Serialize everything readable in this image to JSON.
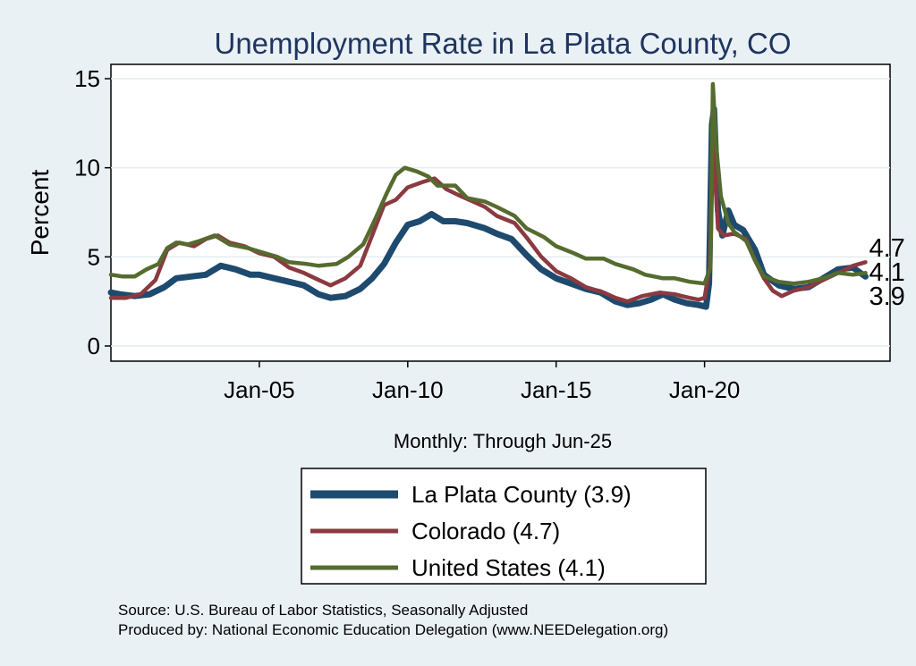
{
  "chart_data": {
    "type": "line",
    "title": "Unemployment Rate in La Plata  County, CO",
    "xlabel": "Monthly: Through Jun-25",
    "ylabel": "Percent",
    "ylim": [
      0,
      15
    ],
    "yticks": [
      0,
      5,
      10,
      15
    ],
    "xlim": [
      2000.0,
      2026.25
    ],
    "xticks": [
      {
        "x": 2005.0,
        "label": "Jan-05"
      },
      {
        "x": 2010.0,
        "label": "Jan-10"
      },
      {
        "x": 2015.0,
        "label": "Jan-15"
      },
      {
        "x": 2020.0,
        "label": "Jan-20"
      }
    ],
    "grid": true,
    "legend_position": "bottom-center",
    "series": [
      {
        "name": "United States",
        "legend_label": "United States (4.1)",
        "color": "#556b2f",
        "end_value": "4.1",
        "points": [
          [
            2000.0,
            4.0
          ],
          [
            2000.4,
            3.9
          ],
          [
            2000.8,
            3.9
          ],
          [
            2001.2,
            4.3
          ],
          [
            2001.6,
            4.6
          ],
          [
            2001.9,
            5.5
          ],
          [
            2002.2,
            5.8
          ],
          [
            2002.6,
            5.7
          ],
          [
            2003.0,
            5.9
          ],
          [
            2003.5,
            6.2
          ],
          [
            2004.0,
            5.7
          ],
          [
            2004.6,
            5.5
          ],
          [
            2005.0,
            5.3
          ],
          [
            2005.6,
            5.0
          ],
          [
            2006.0,
            4.7
          ],
          [
            2006.6,
            4.6
          ],
          [
            2007.0,
            4.5
          ],
          [
            2007.6,
            4.6
          ],
          [
            2008.0,
            5.0
          ],
          [
            2008.5,
            5.7
          ],
          [
            2008.9,
            7.1
          ],
          [
            2009.3,
            8.6
          ],
          [
            2009.6,
            9.6
          ],
          [
            2009.9,
            10.0
          ],
          [
            2010.3,
            9.8
          ],
          [
            2010.7,
            9.5
          ],
          [
            2011.0,
            9.0
          ],
          [
            2011.6,
            9.0
          ],
          [
            2012.0,
            8.3
          ],
          [
            2012.6,
            8.1
          ],
          [
            2013.0,
            7.8
          ],
          [
            2013.6,
            7.3
          ],
          [
            2014.0,
            6.6
          ],
          [
            2014.6,
            6.1
          ],
          [
            2015.0,
            5.6
          ],
          [
            2015.6,
            5.2
          ],
          [
            2016.0,
            4.9
          ],
          [
            2016.6,
            4.9
          ],
          [
            2017.0,
            4.6
          ],
          [
            2017.6,
            4.3
          ],
          [
            2018.0,
            4.0
          ],
          [
            2018.6,
            3.8
          ],
          [
            2019.0,
            3.8
          ],
          [
            2019.5,
            3.6
          ],
          [
            2020.0,
            3.5
          ],
          [
            2020.2,
            4.4
          ],
          [
            2020.28,
            14.7
          ],
          [
            2020.4,
            11.1
          ],
          [
            2020.55,
            8.4
          ],
          [
            2020.8,
            6.9
          ],
          [
            2021.0,
            6.4
          ],
          [
            2021.4,
            5.9
          ],
          [
            2021.7,
            4.8
          ],
          [
            2022.0,
            3.9
          ],
          [
            2022.5,
            3.6
          ],
          [
            2023.0,
            3.5
          ],
          [
            2023.5,
            3.6
          ],
          [
            2024.0,
            3.8
          ],
          [
            2024.5,
            4.1
          ],
          [
            2025.0,
            4.0
          ],
          [
            2025.42,
            4.1
          ]
        ]
      },
      {
        "name": "Colorado",
        "legend_label": "Colorado (4.7)",
        "color": "#8b3a3f",
        "end_value": "4.7",
        "points": [
          [
            2000.0,
            2.7
          ],
          [
            2000.5,
            2.7
          ],
          [
            2001.0,
            2.9
          ],
          [
            2001.5,
            3.7
          ],
          [
            2001.9,
            5.4
          ],
          [
            2002.3,
            5.8
          ],
          [
            2002.8,
            5.6
          ],
          [
            2003.2,
            6.0
          ],
          [
            2003.6,
            6.2
          ],
          [
            2004.0,
            5.8
          ],
          [
            2004.5,
            5.6
          ],
          [
            2005.0,
            5.2
          ],
          [
            2005.5,
            5.0
          ],
          [
            2006.0,
            4.4
          ],
          [
            2006.5,
            4.1
          ],
          [
            2007.0,
            3.7
          ],
          [
            2007.4,
            3.4
          ],
          [
            2007.9,
            3.8
          ],
          [
            2008.4,
            4.5
          ],
          [
            2008.8,
            6.2
          ],
          [
            2009.2,
            7.9
          ],
          [
            2009.6,
            8.2
          ],
          [
            2010.0,
            8.9
          ],
          [
            2010.5,
            9.2
          ],
          [
            2010.9,
            9.4
          ],
          [
            2011.3,
            8.8
          ],
          [
            2011.8,
            8.4
          ],
          [
            2012.2,
            8.1
          ],
          [
            2012.6,
            7.8
          ],
          [
            2013.0,
            7.3
          ],
          [
            2013.6,
            6.9
          ],
          [
            2014.0,
            6.1
          ],
          [
            2014.5,
            5.0
          ],
          [
            2015.0,
            4.2
          ],
          [
            2015.5,
            3.8
          ],
          [
            2016.0,
            3.3
          ],
          [
            2016.6,
            3.0
          ],
          [
            2017.0,
            2.7
          ],
          [
            2017.4,
            2.5
          ],
          [
            2017.9,
            2.8
          ],
          [
            2018.5,
            3.0
          ],
          [
            2019.0,
            2.9
          ],
          [
            2019.5,
            2.7
          ],
          [
            2019.8,
            2.6
          ],
          [
            2020.0,
            2.7
          ],
          [
            2020.18,
            4.5
          ],
          [
            2020.28,
            11.8
          ],
          [
            2020.45,
            6.6
          ],
          [
            2020.65,
            6.2
          ],
          [
            2021.0,
            6.3
          ],
          [
            2021.4,
            6.0
          ],
          [
            2021.7,
            4.8
          ],
          [
            2022.0,
            3.8
          ],
          [
            2022.3,
            3.1
          ],
          [
            2022.6,
            2.8
          ],
          [
            2023.0,
            3.1
          ],
          [
            2023.5,
            3.3
          ],
          [
            2024.0,
            3.7
          ],
          [
            2024.5,
            4.1
          ],
          [
            2025.0,
            4.5
          ],
          [
            2025.42,
            4.7
          ]
        ]
      },
      {
        "name": "La Plata  County",
        "legend_label": "La Plata  County (3.9)",
        "color": "#1e4a6e",
        "end_value": "3.9",
        "points": [
          [
            2000.0,
            3.0
          ],
          [
            2000.3,
            2.9
          ],
          [
            2000.8,
            2.8
          ],
          [
            2001.3,
            2.9
          ],
          [
            2001.8,
            3.3
          ],
          [
            2002.2,
            3.8
          ],
          [
            2002.7,
            3.9
          ],
          [
            2003.2,
            4.0
          ],
          [
            2003.7,
            4.5
          ],
          [
            2004.2,
            4.3
          ],
          [
            2004.7,
            4.0
          ],
          [
            2005.0,
            4.0
          ],
          [
            2005.5,
            3.8
          ],
          [
            2006.0,
            3.6
          ],
          [
            2006.5,
            3.4
          ],
          [
            2007.0,
            2.9
          ],
          [
            2007.4,
            2.7
          ],
          [
            2007.9,
            2.8
          ],
          [
            2008.4,
            3.2
          ],
          [
            2008.8,
            3.8
          ],
          [
            2009.2,
            4.6
          ],
          [
            2009.6,
            5.8
          ],
          [
            2010.0,
            6.8
          ],
          [
            2010.4,
            7.0
          ],
          [
            2010.8,
            7.4
          ],
          [
            2011.2,
            7.0
          ],
          [
            2011.6,
            7.0
          ],
          [
            2012.0,
            6.9
          ],
          [
            2012.6,
            6.6
          ],
          [
            2013.0,
            6.3
          ],
          [
            2013.5,
            6.0
          ],
          [
            2014.0,
            5.1
          ],
          [
            2014.5,
            4.3
          ],
          [
            2015.0,
            3.8
          ],
          [
            2015.5,
            3.5
          ],
          [
            2016.0,
            3.2
          ],
          [
            2016.5,
            3.0
          ],
          [
            2017.0,
            2.5
          ],
          [
            2017.4,
            2.3
          ],
          [
            2017.8,
            2.4
          ],
          [
            2018.2,
            2.6
          ],
          [
            2018.6,
            2.9
          ],
          [
            2019.0,
            2.6
          ],
          [
            2019.4,
            2.4
          ],
          [
            2019.8,
            2.3
          ],
          [
            2020.05,
            2.2
          ],
          [
            2020.15,
            3.5
          ],
          [
            2020.25,
            12.4
          ],
          [
            2020.32,
            13.3
          ],
          [
            2020.45,
            7.6
          ],
          [
            2020.6,
            6.2
          ],
          [
            2020.8,
            7.6
          ],
          [
            2021.0,
            6.8
          ],
          [
            2021.3,
            6.5
          ],
          [
            2021.7,
            5.4
          ],
          [
            2022.0,
            4.0
          ],
          [
            2022.5,
            3.4
          ],
          [
            2023.0,
            3.2
          ],
          [
            2023.5,
            3.3
          ],
          [
            2024.0,
            3.8
          ],
          [
            2024.5,
            4.3
          ],
          [
            2025.0,
            4.4
          ],
          [
            2025.42,
            3.9
          ]
        ]
      }
    ],
    "source_lines": [
      "Source: U.S. Bureau of Labor Statistics, Seasonally Adjusted",
      "Produced by: National Economic Education Delegation (www.NEEDelegation.org)"
    ]
  }
}
